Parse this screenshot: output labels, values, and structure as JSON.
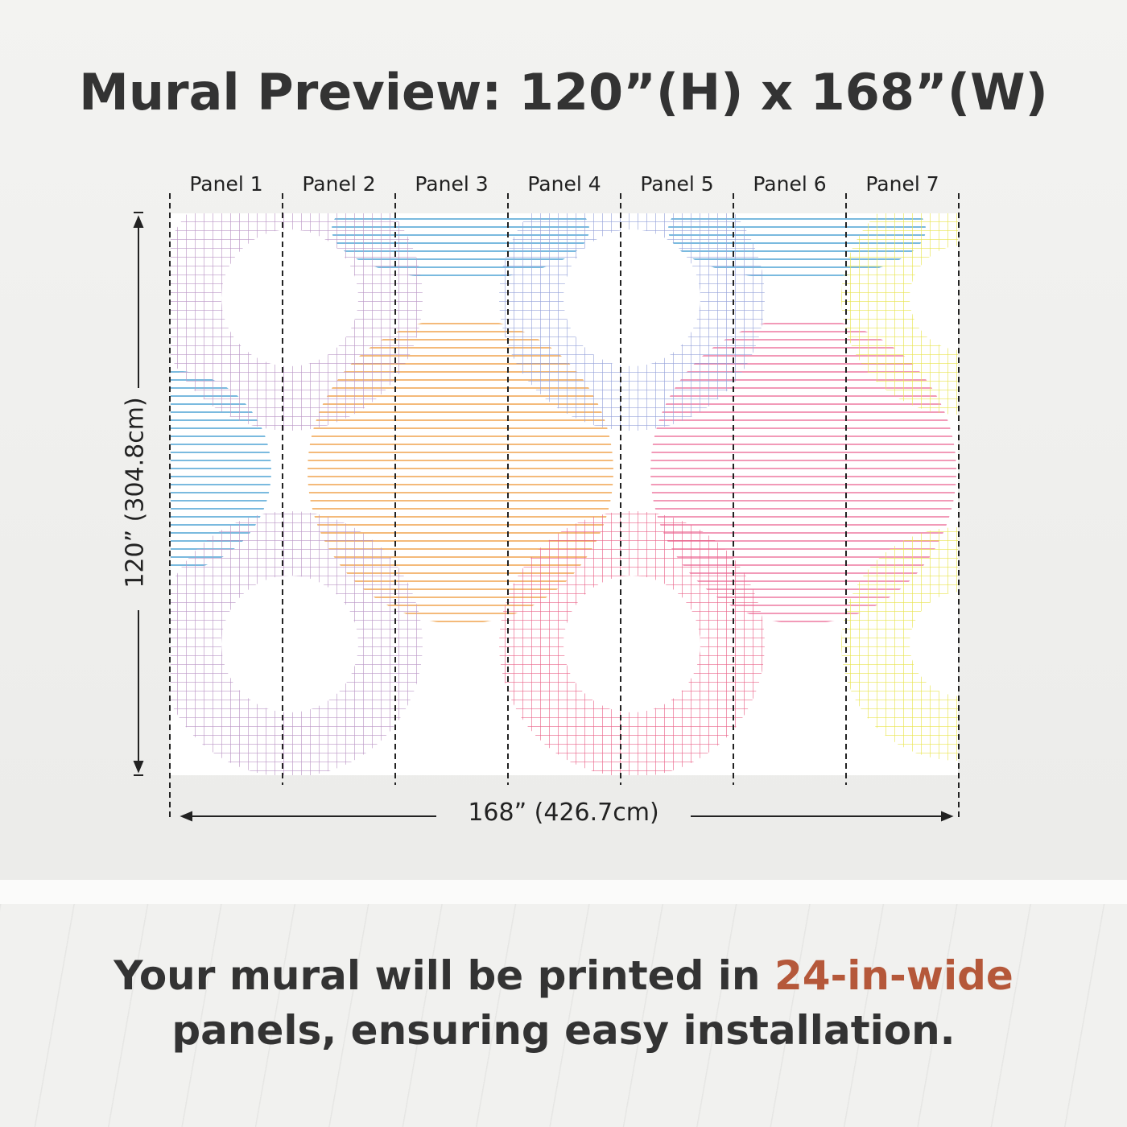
{
  "title": "Mural Preview: 120”(H) x 168”(W)",
  "panels": [
    "Panel 1",
    "Panel 2",
    "Panel 3",
    "Panel 4",
    "Panel 5",
    "Panel 6",
    "Panel 7"
  ],
  "dimensions": {
    "height": "120” (304.8cm)",
    "width": "168” (426.7cm)"
  },
  "caption": {
    "before": "Your mural will be printed in ",
    "highlight": "24-in-wide",
    "after": " panels, ensuring easy installation."
  },
  "colors": {
    "accent": "#b5583a",
    "text": "#333333",
    "purple": "#b48cc0",
    "blue": "#3a9bd0",
    "orange": "#ef9a3a",
    "pink": "#e8567f",
    "yellow": "#e6e23a"
  }
}
